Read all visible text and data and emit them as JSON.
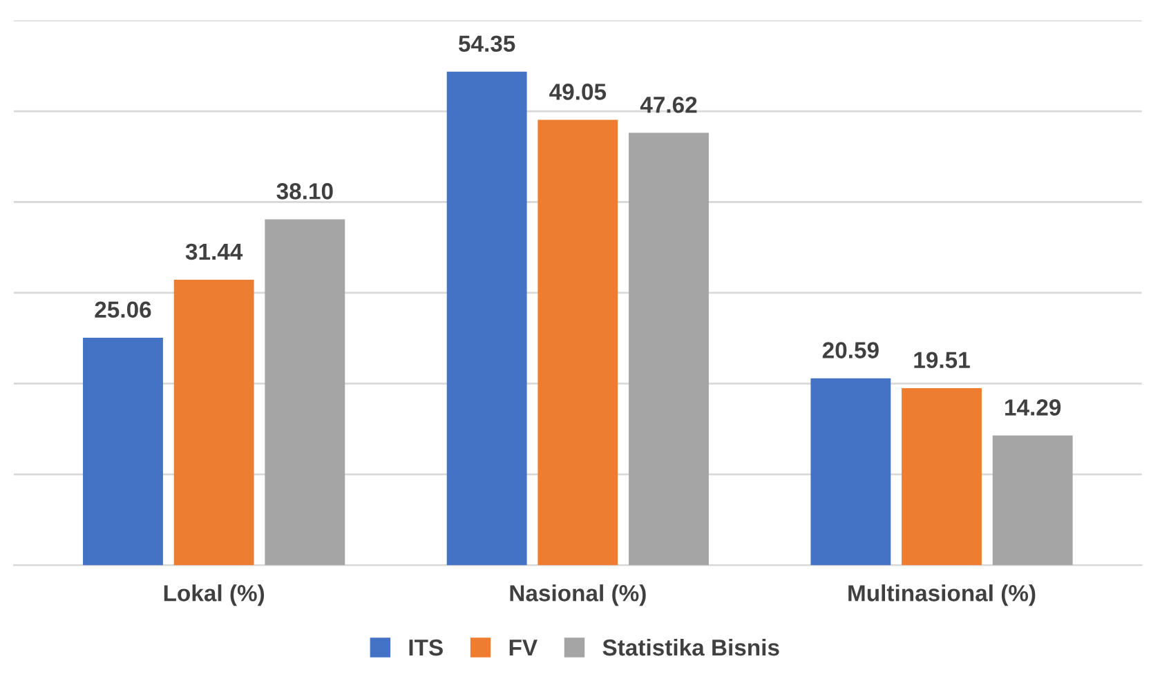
{
  "chart_data": {
    "type": "bar",
    "categories": [
      "Lokal (%)",
      "Nasional (%)",
      "Multinasional (%)"
    ],
    "series": [
      {
        "name": "ITS",
        "color": "#4472c4",
        "values": [
          25.06,
          54.35,
          20.59
        ],
        "value_labels": [
          "25.06",
          "54.35",
          "20.59"
        ]
      },
      {
        "name": "FV",
        "color": "#ed7d31",
        "values": [
          31.44,
          49.05,
          19.51
        ],
        "value_labels": [
          "31.44",
          "49.05",
          "19.51"
        ]
      },
      {
        "name": "Statistika Bisnis",
        "color": "#a5a5a5",
        "values": [
          38.1,
          47.62,
          14.29
        ],
        "value_labels": [
          "38.10",
          "47.62",
          "14.29"
        ]
      }
    ],
    "ylim": [
      0,
      60
    ],
    "yticks": [
      {
        "value": 0,
        "label": null
      },
      {
        "value": 10,
        "label": null
      },
      {
        "value": 20,
        "label": null
      },
      {
        "value": 30,
        "label": null
      },
      {
        "value": 40,
        "label": null
      },
      {
        "value": 50,
        "label": null
      },
      {
        "value": 60,
        "label": null
      }
    ],
    "tick_labels": "x",
    "grid": "y",
    "legend": "bottom"
  }
}
